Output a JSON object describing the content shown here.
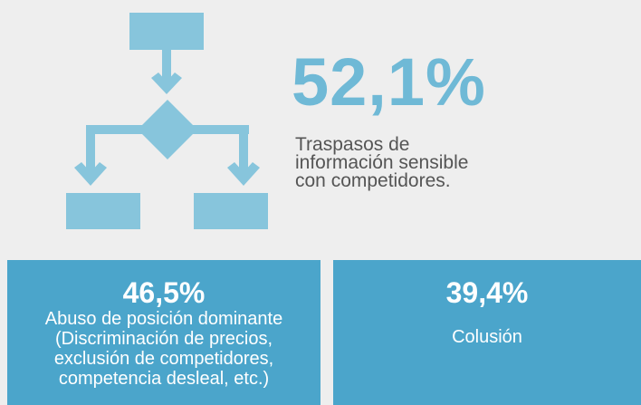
{
  "hero": {
    "value": "52,1%",
    "description": [
      "Traspasos de",
      "información sensible",
      "con competidores."
    ]
  },
  "cards": [
    {
      "value": "46,5%",
      "lines": [
        "Abuso de posición dominante",
        "(Discriminación de precios,",
        "exclusión de competidores,",
        "competencia desleal, etc.)"
      ]
    },
    {
      "value": "39,4%",
      "lines": [
        "Colusión"
      ]
    }
  ]
}
